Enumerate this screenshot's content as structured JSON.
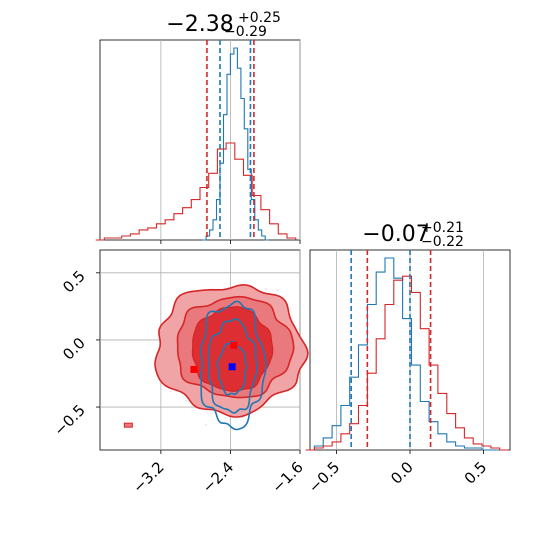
{
  "chart_data": [
    {
      "type": "histogram",
      "panel": "top-left marginal",
      "title_value": "−2.38",
      "title_sup": "+0.25",
      "title_sub": "−0.29",
      "xlim": [
        -3.9,
        -1.6
      ],
      "grid": true,
      "series": [
        {
          "color": "#1f77b4",
          "median": -2.38,
          "quantiles": [
            -2.52,
            -2.17
          ],
          "bins_x": [
            -2.7,
            -2.66,
            -2.62,
            -2.58,
            -2.54,
            -2.5,
            -2.46,
            -2.42,
            -2.38,
            -2.34,
            -2.3,
            -2.26,
            -2.22,
            -2.18,
            -2.14,
            -2.1,
            -2.06,
            -2.02,
            -1.98
          ],
          "values": [
            0.0,
            0.02,
            0.05,
            0.1,
            0.2,
            0.38,
            0.62,
            0.82,
            0.92,
            0.95,
            0.85,
            0.7,
            0.55,
            0.35,
            0.2,
            0.1,
            0.05,
            0.02,
            0.0
          ]
        },
        {
          "color": "#d62728",
          "median": -2.38,
          "quantiles": [
            -2.67,
            -2.13
          ],
          "bins_x": [
            -3.9,
            -3.8,
            -3.7,
            -3.6,
            -3.5,
            -3.4,
            -3.3,
            -3.2,
            -3.1,
            -3.0,
            -2.9,
            -2.8,
            -2.7,
            -2.6,
            -2.5,
            -2.4,
            -2.3,
            -2.2,
            -2.1,
            -2.0,
            -1.9,
            -1.8,
            -1.7
          ],
          "values": [
            0.0,
            0.01,
            0.01,
            0.02,
            0.03,
            0.05,
            0.06,
            0.08,
            0.1,
            0.13,
            0.16,
            0.2,
            0.26,
            0.33,
            0.45,
            0.48,
            0.4,
            0.32,
            0.22,
            0.15,
            0.08,
            0.03,
            0.01
          ]
        }
      ]
    },
    {
      "type": "contour",
      "panel": "bottom-left 2D",
      "xlim": [
        -3.9,
        -1.6
      ],
      "ylim": [
        -0.82,
        0.67
      ],
      "xticks": [
        "−3.2",
        "−2.4",
        "−1.6"
      ],
      "xtick_values": [
        -3.2,
        -2.4,
        -1.6
      ],
      "yticks": [
        "0.5",
        "0.0",
        "−0.5"
      ],
      "ytick_values": [
        0.5,
        0.0,
        -0.5
      ],
      "grid": true,
      "series": [
        {
          "color": "#d62728",
          "center": [
            -2.36,
            -0.04
          ],
          "marker_x": -2.36,
          "marker_y": -0.04
        },
        {
          "color": "#1f77b4",
          "center": [
            -2.38,
            -0.2
          ],
          "marker_x": -2.38,
          "marker_y": -0.2
        }
      ],
      "extra_marker": {
        "color": "#d62728",
        "x": -2.82,
        "y": -0.22
      }
    },
    {
      "type": "histogram",
      "panel": "bottom-right marginal",
      "title_value": "−0.07",
      "title_sup": "+0.21",
      "title_sub": "−0.22",
      "xlim": [
        -0.68,
        0.68
      ],
      "xticks": [
        "−0.5",
        "0.0",
        "0.5"
      ],
      "xtick_values": [
        -0.5,
        0.0,
        0.5
      ],
      "grid": true,
      "series": [
        {
          "color": "#1f77b4",
          "median": -0.2,
          "quantiles": [
            -0.4,
            0.0
          ],
          "bins_x": [
            -0.68,
            -0.62,
            -0.56,
            -0.5,
            -0.44,
            -0.38,
            -0.32,
            -0.26,
            -0.2,
            -0.14,
            -0.08,
            -0.02,
            0.04,
            0.1,
            0.16,
            0.22,
            0.28,
            0.34,
            0.4,
            0.46,
            0.52,
            0.58,
            0.64
          ],
          "values": [
            0.0,
            0.02,
            0.06,
            0.12,
            0.22,
            0.36,
            0.52,
            0.72,
            0.88,
            0.95,
            0.85,
            0.65,
            0.42,
            0.24,
            0.14,
            0.08,
            0.04,
            0.02,
            0.01,
            0.01,
            0.0,
            0.0,
            0.0
          ]
        },
        {
          "color": "#d62728",
          "median": -0.07,
          "quantiles": [
            -0.29,
            0.14
          ],
          "bins_x": [
            -0.68,
            -0.62,
            -0.56,
            -0.5,
            -0.44,
            -0.38,
            -0.32,
            -0.26,
            -0.2,
            -0.14,
            -0.08,
            -0.02,
            0.04,
            0.1,
            0.16,
            0.22,
            0.28,
            0.34,
            0.4,
            0.46,
            0.52,
            0.58,
            0.64
          ],
          "values": [
            0.0,
            0.01,
            0.02,
            0.04,
            0.08,
            0.13,
            0.22,
            0.38,
            0.55,
            0.72,
            0.84,
            0.86,
            0.78,
            0.6,
            0.42,
            0.28,
            0.18,
            0.11,
            0.06,
            0.03,
            0.02,
            0.01,
            0.0
          ]
        }
      ]
    }
  ]
}
